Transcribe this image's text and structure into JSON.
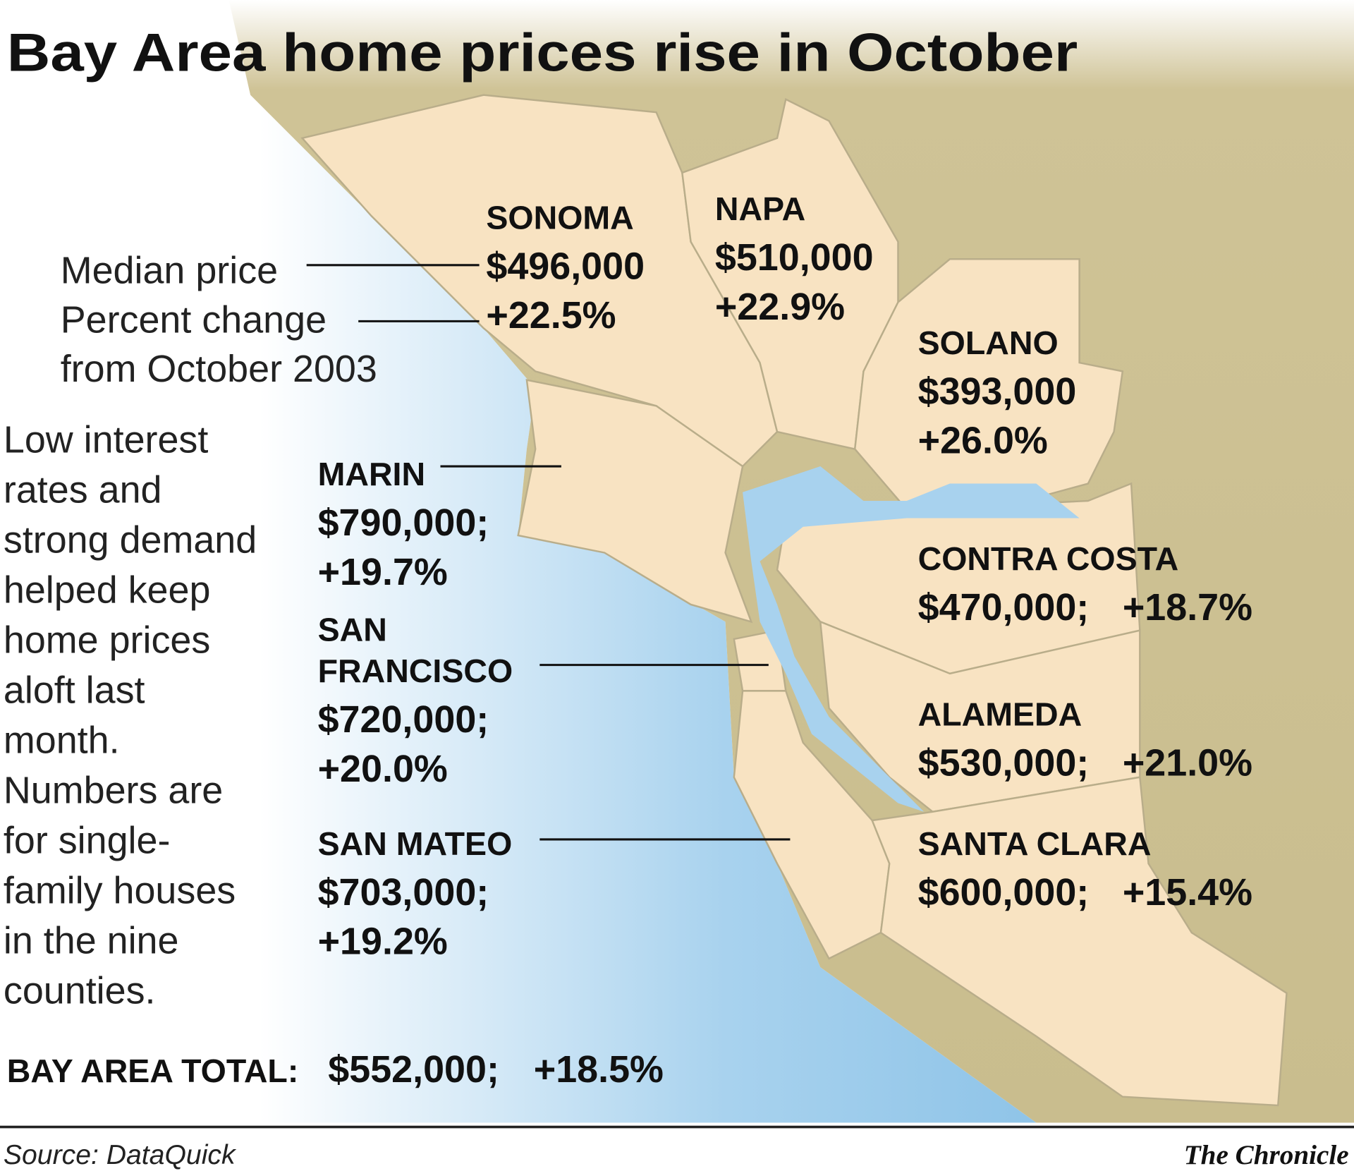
{
  "title": "Bay Area home prices rise in October",
  "legend": {
    "lines": [
      "Median price",
      "Percent change",
      "from October 2003"
    ]
  },
  "note": {
    "lines": [
      "Low interest",
      "rates and",
      "strong demand",
      "helped keep",
      "home prices",
      "aloft last",
      "month.",
      "Numbers are",
      "for single-",
      "family houses",
      "in the nine",
      "counties."
    ]
  },
  "counties": [
    {
      "name_lines": [
        "SONOMA"
      ],
      "price": "$496,000",
      "change": "+22.5%"
    },
    {
      "name_lines": [
        "NAPA"
      ],
      "price": "$510,000",
      "change": "+22.9%"
    },
    {
      "name_lines": [
        "SOLANO"
      ],
      "price": "$393,000",
      "change": "+26.0%"
    },
    {
      "name_lines": [
        "MARIN"
      ],
      "price": "$790,000;",
      "change": "+19.7%"
    },
    {
      "name_lines": [
        "SAN",
        "FRANCISCO"
      ],
      "price": "$720,000;",
      "change": "+20.0%"
    },
    {
      "name_lines": [
        "SAN MATEO"
      ],
      "price": "$703,000;",
      "change": "+19.2%"
    },
    {
      "name_lines": [
        "CONTRA COSTA"
      ],
      "price": "$470,000;",
      "change": "+18.7%"
    },
    {
      "name_lines": [
        "ALAMEDA"
      ],
      "price": "$530,000;",
      "change": "+21.0%"
    },
    {
      "name_lines": [
        "SANTA CLARA"
      ],
      "price": "$600,000;",
      "change": "+15.4%"
    }
  ],
  "total": {
    "label": "BAY AREA TOTAL:",
    "price": "$552,000;",
    "change": "+18.5%"
  },
  "footer": {
    "source": "Source: DataQuick",
    "credit": "The Chronicle"
  }
}
